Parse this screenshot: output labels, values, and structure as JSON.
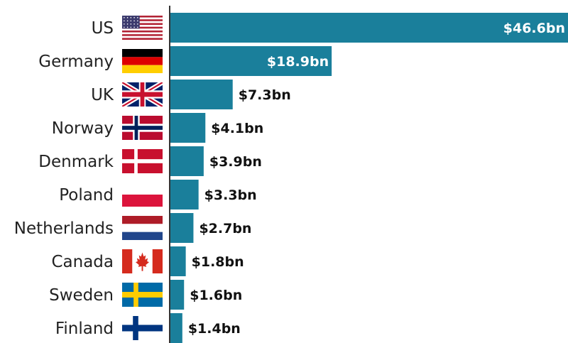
{
  "chart_data": {
    "type": "bar",
    "orientation": "horizontal",
    "title": "",
    "xlabel": "",
    "ylabel": "",
    "categories": [
      "US",
      "Germany",
      "UK",
      "Norway",
      "Denmark",
      "Poland",
      "Netherlands",
      "Canada",
      "Sweden",
      "Finland"
    ],
    "values": [
      46.6,
      18.9,
      7.3,
      4.1,
      3.9,
      3.3,
      2.7,
      1.8,
      1.6,
      1.4
    ],
    "value_labels": [
      "$46.6bn",
      "$18.9bn",
      "$7.3bn",
      "$4.1bn",
      "$3.9bn",
      "$3.3bn",
      "$2.7bn",
      "$1.8bn",
      "$1.6bn",
      "$1.4bn"
    ],
    "flags": [
      "us-flag-icon",
      "germany-flag-icon",
      "uk-flag-icon",
      "norway-flag-icon",
      "denmark-flag-icon",
      "poland-flag-icon",
      "netherlands-flag-icon",
      "canada-flag-icon",
      "sweden-flag-icon",
      "finland-flag-icon"
    ],
    "xlim": [
      0,
      46.6
    ],
    "grid": false,
    "bar_color": "#1a7f9b",
    "label_inside_color": "#ffffff",
    "label_outside_color": "#111111"
  }
}
